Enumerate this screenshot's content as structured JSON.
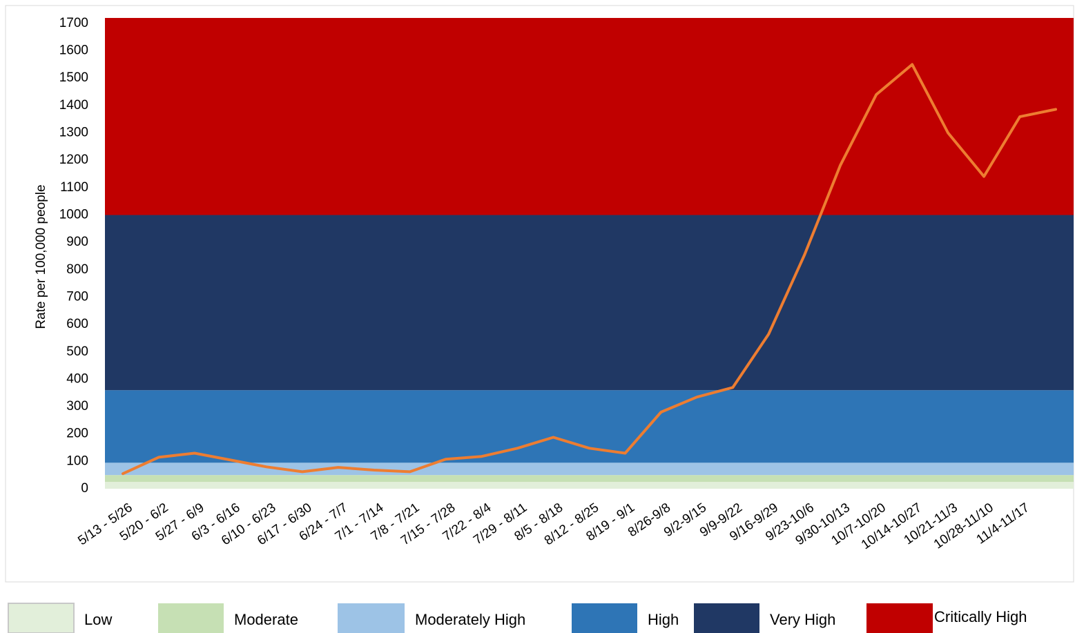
{
  "chart_data": {
    "type": "line",
    "y_label": "Rate per 100,000 people",
    "categories": [
      "5/13 - 5/26",
      "5/20 - 6/2",
      "5/27 - 6/9",
      "6/3 - 6/16",
      "6/10 - 6/23",
      "6/17 - 6/30",
      "6/24 - 7/7",
      "7/1 - 7/14",
      "7/8 - 7/21",
      "7/15 - 7/28",
      "7/22 - 8/4",
      "7/29 - 8/11",
      "8/5 - 8/18",
      "8/12 - 8/25",
      "8/19 - 9/1",
      "8/26-9/8",
      "9/2-9/15",
      "9/9-9/22",
      "9/16-9/29",
      "9/23-10/6",
      "9/30-10/13",
      "10/7-10/20",
      "10/14-10/27",
      "10/21-11/3",
      "10/28-11/10",
      "11/4-11/17",
      null
    ],
    "series": [
      {
        "name": "Rate",
        "color": "#ed7d31",
        "values": [
          55,
          115,
          130,
          105,
          80,
          62,
          78,
          68,
          62,
          108,
          118,
          148,
          188,
          148,
          130,
          280,
          335,
          370,
          565,
          855,
          1182,
          1440,
          1550,
          1300,
          1141,
          1359,
          1386
        ]
      }
    ],
    "bands": [
      {
        "name": "Low",
        "color": "#e2efda",
        "from": 0,
        "to": 25
      },
      {
        "name": "Moderate",
        "color": "#c6e0b4",
        "from": 25,
        "to": 50
      },
      {
        "name": "Moderately High",
        "color": "#9dc3e6",
        "from": 50,
        "to": 95
      },
      {
        "name": "High",
        "color": "#2e75b6",
        "from": 95,
        "to": 360
      },
      {
        "name": "Very High",
        "color": "#203864",
        "from": 360,
        "to": 1000
      },
      {
        "name": "Critically High",
        "color": "#c00000",
        "from": 1000,
        "to": 1720
      }
    ],
    "ylim": [
      0,
      1720
    ],
    "yticks": [
      0,
      100,
      200,
      300,
      400,
      500,
      600,
      700,
      800,
      900,
      1000,
      1100,
      1200,
      1300,
      1400,
      1500,
      1600,
      1700
    ],
    "grid": false
  }
}
